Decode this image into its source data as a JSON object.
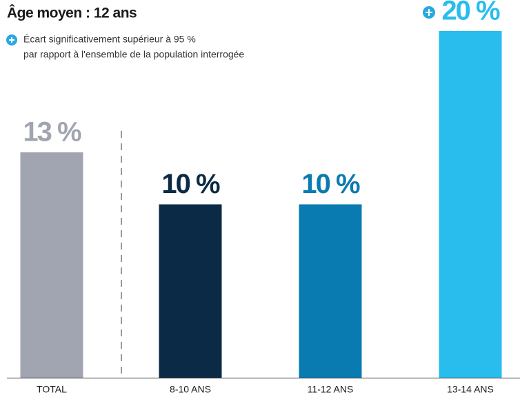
{
  "chart_data": {
    "type": "bar",
    "title": "Âge moyen : 12 ans",
    "note": [
      "Écart significativement supérieur à 95 %",
      "par rapport à l'ensemble de la population interrogée"
    ],
    "categories": [
      "TOTAL",
      "8-10 ANS",
      "11-12 ANS",
      "13-14 ANS"
    ],
    "values": [
      13,
      10,
      10,
      20
    ],
    "value_labels": [
      "13 %",
      "10 %",
      "10 %",
      "20 %"
    ],
    "colors": [
      "#a1a5b1",
      "#0b2a45",
      "#0a7bb0",
      "#29bdee"
    ],
    "significant": [
      false,
      false,
      false,
      true
    ]
  }
}
